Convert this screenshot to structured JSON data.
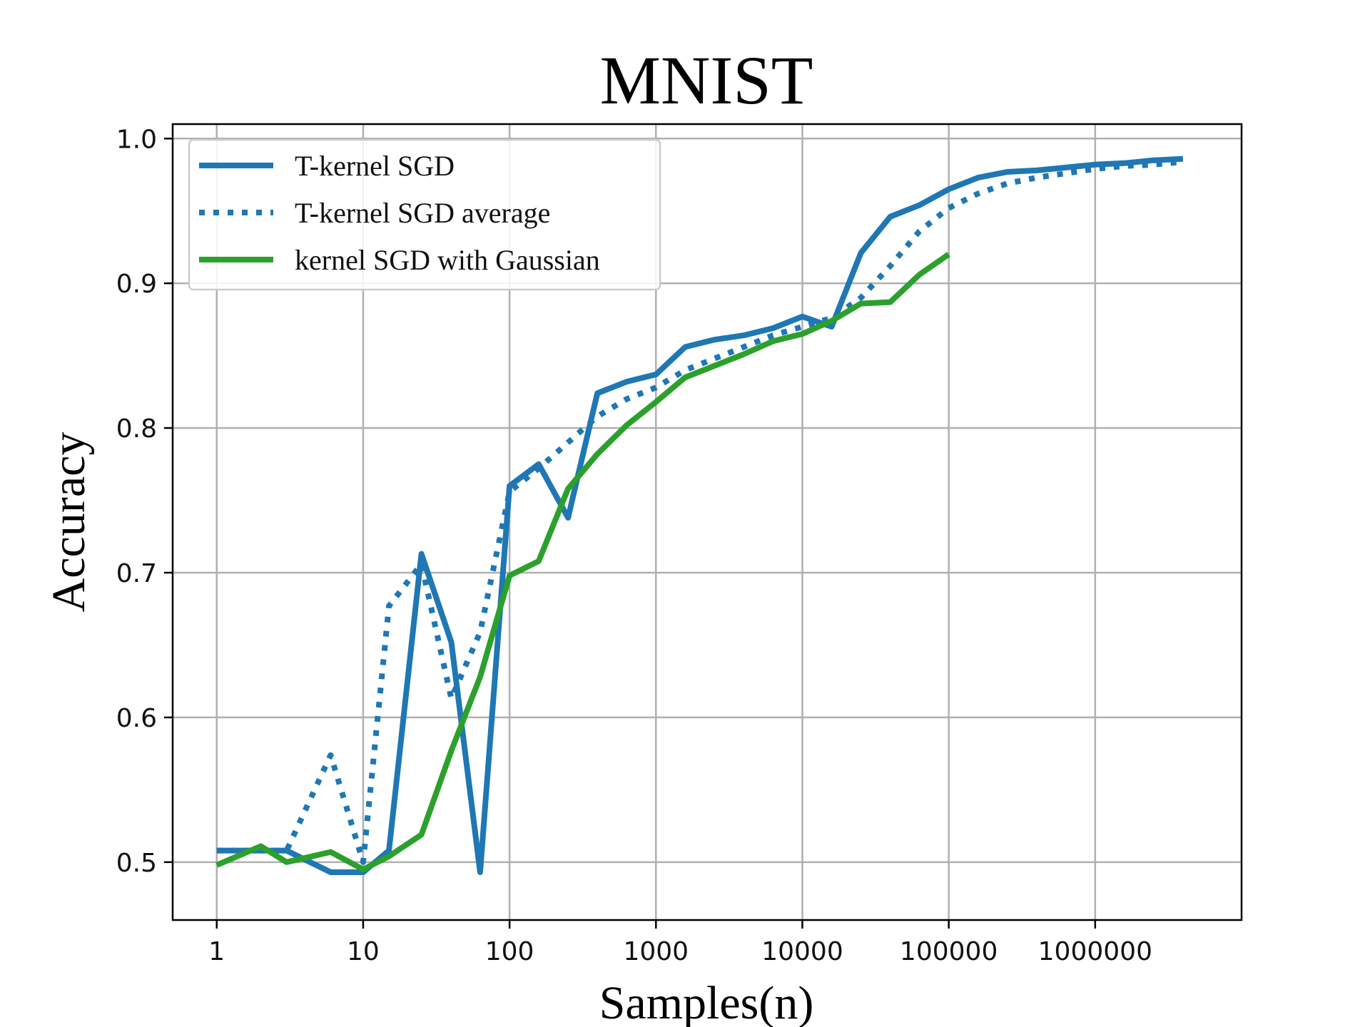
{
  "chart_data": {
    "type": "line",
    "title": "MNIST",
    "xlabel": "Samples(n)",
    "ylabel": "Accuracy",
    "xscale": "log",
    "xlim": [
      0.5,
      10000000
    ],
    "ylim": [
      0.46,
      1.01
    ],
    "grid": true,
    "legend_position": "top-left",
    "x_ticks": [
      {
        "value": 1,
        "label": "1"
      },
      {
        "value": 10,
        "label": "10"
      },
      {
        "value": 100,
        "label": "100"
      },
      {
        "value": 1000,
        "label": "1000"
      },
      {
        "value": 10000,
        "label": "10000"
      },
      {
        "value": 100000,
        "label": "100000"
      },
      {
        "value": 1000000,
        "label": "1000000"
      }
    ],
    "y_ticks": [
      {
        "value": 0.5,
        "label": "0.5"
      },
      {
        "value": 0.6,
        "label": "0.6"
      },
      {
        "value": 0.7,
        "label": "0.7"
      },
      {
        "value": 0.8,
        "label": "0.8"
      },
      {
        "value": 0.9,
        "label": "0.9"
      },
      {
        "value": 1.0,
        "label": "1.0"
      }
    ],
    "series": [
      {
        "name": "T-kernel SGD",
        "color": "#1f77b4",
        "style": "solid",
        "x": [
          1,
          2,
          3,
          6,
          10,
          15,
          25,
          40,
          63,
          100,
          158,
          251,
          398,
          631,
          1000,
          1585,
          2512,
          3981,
          6310,
          10000,
          15849,
          25119,
          39811,
          63096,
          100000,
          158489,
          251189,
          398107,
          630957,
          1000000,
          1584893,
          2511886,
          3981072
        ],
        "y": [
          0.508,
          0.508,
          0.508,
          0.493,
          0.493,
          0.508,
          0.713,
          0.652,
          0.493,
          0.76,
          0.775,
          0.738,
          0.824,
          0.832,
          0.837,
          0.856,
          0.861,
          0.864,
          0.869,
          0.877,
          0.87,
          0.921,
          0.946,
          0.954,
          0.965,
          0.973,
          0.977,
          0.978,
          0.98,
          0.982,
          0.983,
          0.985,
          0.986
        ]
      },
      {
        "name": "T-kernel SGD average",
        "color": "#1f77b4",
        "style": "dotted",
        "x": [
          1,
          2,
          3,
          6,
          10,
          15,
          25,
          40,
          63,
          100,
          158,
          251,
          398,
          631,
          1000,
          1585,
          2512,
          3981,
          6310,
          10000,
          15849,
          25119,
          39811,
          63096,
          100000,
          158489,
          251189,
          398107,
          630957,
          1000000,
          1584893,
          2511886,
          3981072
        ],
        "y": [
          0.508,
          0.508,
          0.508,
          0.574,
          0.5,
          0.677,
          0.706,
          0.613,
          0.659,
          0.756,
          0.772,
          0.79,
          0.808,
          0.82,
          0.828,
          0.84,
          0.848,
          0.856,
          0.864,
          0.87,
          0.876,
          0.89,
          0.912,
          0.936,
          0.952,
          0.962,
          0.969,
          0.973,
          0.976,
          0.979,
          0.981,
          0.982,
          0.984
        ]
      },
      {
        "name": "kernel SGD with Gaussian",
        "color": "#2ca02c",
        "style": "solid",
        "x": [
          1,
          2,
          3,
          6,
          10,
          15,
          25,
          40,
          63,
          100,
          158,
          251,
          398,
          631,
          1000,
          1585,
          2512,
          3981,
          6310,
          10000,
          15849,
          25119,
          39811,
          63096,
          100000
        ],
        "y": [
          0.498,
          0.511,
          0.5,
          0.507,
          0.495,
          0.504,
          0.519,
          0.577,
          0.628,
          0.698,
          0.708,
          0.758,
          0.782,
          0.802,
          0.818,
          0.835,
          0.843,
          0.851,
          0.86,
          0.865,
          0.874,
          0.886,
          0.887,
          0.906,
          0.92
        ]
      }
    ]
  }
}
